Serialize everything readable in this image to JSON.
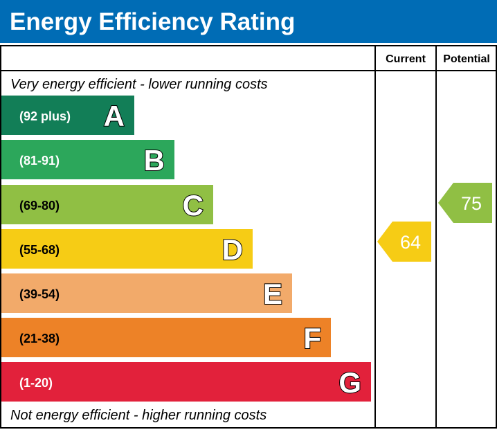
{
  "title": "Energy Efficiency Rating",
  "columns": {
    "current": "Current",
    "potential": "Potential"
  },
  "top_note": "Very energy efficient - lower running costs",
  "bottom_note": "Not energy efficient - higher running costs",
  "colors": {
    "header": "#006cb5"
  },
  "chart_data": {
    "type": "bar",
    "bands": [
      {
        "letter": "A",
        "range": "(92 plus)",
        "color": "#127e57"
      },
      {
        "letter": "B",
        "range": "(81-91)",
        "color": "#2ca75b"
      },
      {
        "letter": "C",
        "range": "(69-80)",
        "color": "#90bf44"
      },
      {
        "letter": "D",
        "range": "(55-68)",
        "color": "#f6cc15"
      },
      {
        "letter": "E",
        "range": "(39-54)",
        "color": "#f2aa6a"
      },
      {
        "letter": "F",
        "range": "(21-38)",
        "color": "#ed8227"
      },
      {
        "letter": "G",
        "range": "(1-20)",
        "color": "#e2213b"
      }
    ],
    "current": {
      "value": "64",
      "band": "D",
      "color": "#f6cc15"
    },
    "potential": {
      "value": "75",
      "band": "C",
      "color": "#90bf44"
    }
  }
}
